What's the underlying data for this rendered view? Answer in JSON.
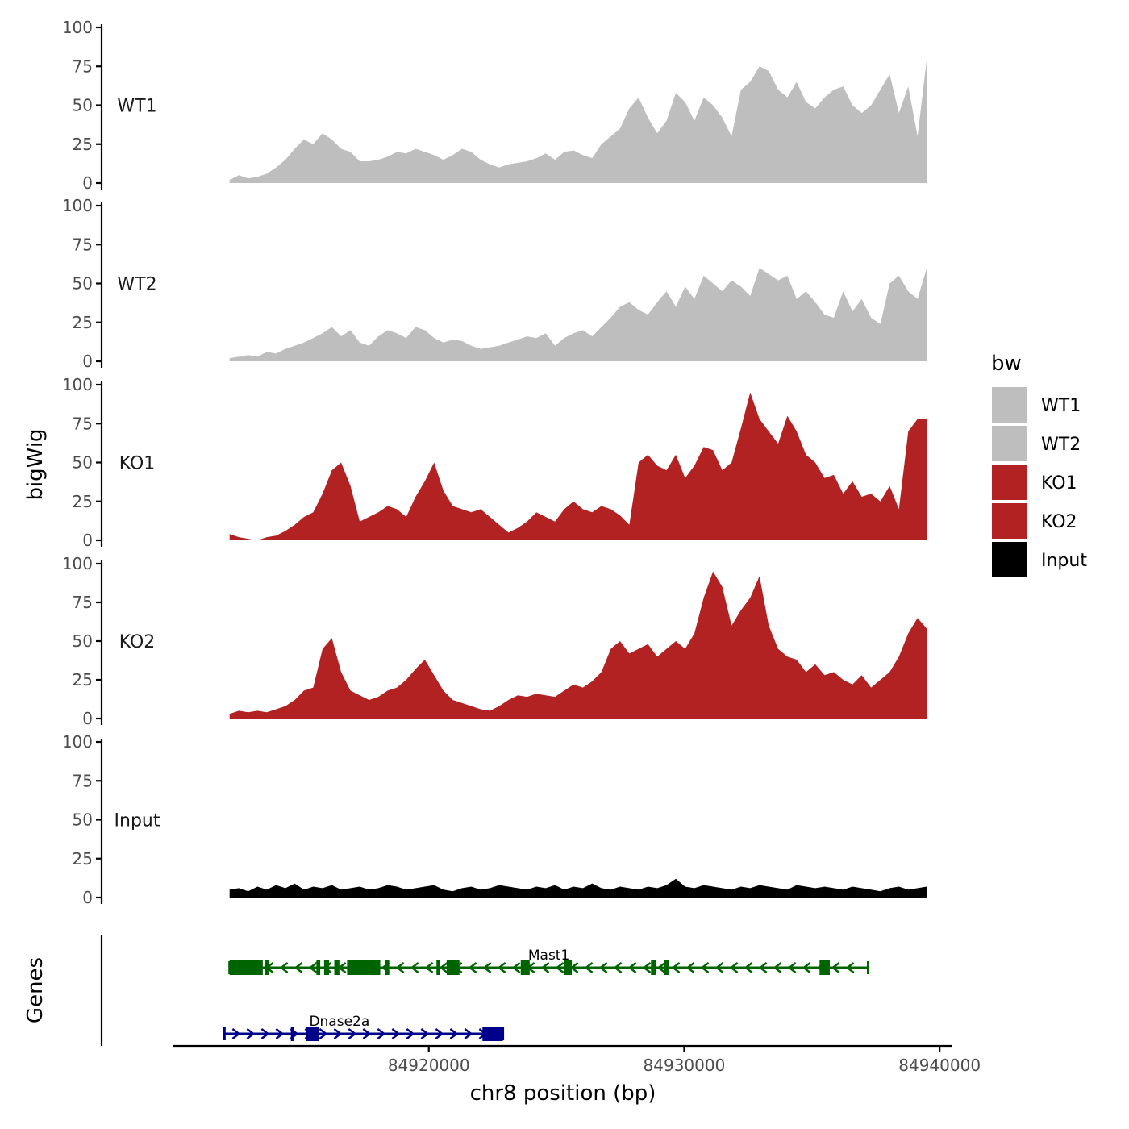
{
  "chart_data": {
    "type": "area",
    "title": "",
    "xlabel": "chr8 position (bp)",
    "ylabel": "bigWig",
    "genes_label": "Genes",
    "xlim": [
      84910000,
      84940500
    ],
    "x_ticks": [
      84920000,
      84930000,
      84940000
    ],
    "x_tick_labels": [
      "84920000",
      "84930000",
      "84940000"
    ],
    "x_range": [
      84912200,
      84939500
    ],
    "ylim": [
      0,
      100
    ],
    "y_ticks": [
      0,
      25,
      50,
      75,
      100
    ],
    "y_tick_labels": [
      "0",
      "25",
      "50",
      "75",
      "100"
    ],
    "legend": {
      "title": "bw",
      "position": "right",
      "entries": [
        {
          "label": "WT1",
          "color": "#bebebe"
        },
        {
          "label": "WT2",
          "color": "#bebebe"
        },
        {
          "label": "KO1",
          "color": "#b22222"
        },
        {
          "label": "KO2",
          "color": "#b22222"
        },
        {
          "label": "Input",
          "color": "#000000"
        }
      ]
    },
    "series": [
      {
        "name": "WT1",
        "color": "#bebebe",
        "values": [
          2,
          5,
          3,
          4,
          6,
          10,
          15,
          22,
          28,
          25,
          32,
          28,
          22,
          20,
          14,
          14,
          15,
          17,
          20,
          19,
          22,
          20,
          18,
          15,
          18,
          22,
          20,
          15,
          12,
          10,
          12,
          13,
          14,
          16,
          19,
          15,
          20,
          21,
          18,
          16,
          25,
          30,
          35,
          48,
          55,
          42,
          32,
          40,
          58,
          52,
          40,
          55,
          50,
          42,
          30,
          60,
          65,
          75,
          72,
          60,
          55,
          65,
          52,
          48,
          55,
          60,
          62,
          50,
          45,
          50,
          60,
          70,
          45,
          62,
          30,
          80
        ]
      },
      {
        "name": "WT2",
        "color": "#bebebe",
        "values": [
          2,
          3,
          4,
          3,
          6,
          5,
          8,
          10,
          12,
          15,
          18,
          22,
          16,
          20,
          12,
          10,
          16,
          20,
          18,
          15,
          22,
          20,
          15,
          12,
          14,
          13,
          10,
          8,
          9,
          10,
          12,
          14,
          16,
          15,
          18,
          10,
          15,
          18,
          20,
          16,
          22,
          28,
          35,
          38,
          33,
          30,
          38,
          45,
          35,
          48,
          40,
          55,
          50,
          45,
          52,
          48,
          42,
          60,
          56,
          52,
          55,
          40,
          45,
          38,
          30,
          28,
          45,
          32,
          40,
          28,
          24,
          50,
          55,
          45,
          40,
          60
        ]
      },
      {
        "name": "KO1",
        "color": "#b22222",
        "values": [
          4,
          2,
          1,
          0,
          2,
          3,
          6,
          10,
          15,
          18,
          30,
          45,
          50,
          35,
          12,
          15,
          18,
          22,
          20,
          15,
          28,
          38,
          50,
          32,
          22,
          20,
          18,
          20,
          15,
          10,
          5,
          8,
          12,
          18,
          15,
          12,
          20,
          25,
          20,
          18,
          22,
          20,
          16,
          10,
          50,
          55,
          48,
          45,
          55,
          40,
          48,
          60,
          58,
          45,
          50,
          72,
          95,
          78,
          70,
          62,
          80,
          70,
          55,
          50,
          40,
          42,
          30,
          38,
          28,
          30,
          25,
          35,
          20,
          70,
          78,
          78
        ]
      },
      {
        "name": "KO2",
        "color": "#b22222",
        "values": [
          3,
          5,
          4,
          5,
          4,
          6,
          8,
          12,
          18,
          20,
          45,
          52,
          30,
          18,
          15,
          12,
          14,
          18,
          20,
          25,
          32,
          38,
          28,
          18,
          12,
          10,
          8,
          6,
          5,
          8,
          12,
          15,
          14,
          16,
          15,
          14,
          18,
          22,
          20,
          24,
          30,
          45,
          50,
          42,
          45,
          48,
          40,
          45,
          50,
          45,
          55,
          78,
          95,
          85,
          60,
          70,
          78,
          92,
          60,
          45,
          40,
          38,
          30,
          35,
          28,
          30,
          25,
          22,
          28,
          20,
          25,
          30,
          40,
          55,
          65,
          58
        ]
      },
      {
        "name": "Input",
        "color": "#000000",
        "values": [
          5,
          6,
          4,
          7,
          5,
          8,
          6,
          9,
          5,
          7,
          6,
          8,
          5,
          6,
          7,
          5,
          6,
          8,
          7,
          5,
          6,
          7,
          8,
          5,
          4,
          6,
          7,
          5,
          6,
          8,
          7,
          6,
          5,
          7,
          6,
          8,
          5,
          7,
          6,
          9,
          6,
          5,
          7,
          6,
          5,
          7,
          6,
          8,
          12,
          7,
          6,
          8,
          7,
          6,
          5,
          7,
          6,
          8,
          7,
          6,
          5,
          8,
          7,
          6,
          7,
          6,
          5,
          7,
          6,
          5,
          4,
          6,
          7,
          5,
          6,
          7
        ]
      }
    ],
    "gene_tracks": [
      {
        "name": "Mast1",
        "strand": "-",
        "color": "#006400",
        "start": 84912200,
        "end": 84937200,
        "exons": [
          [
            84912200,
            84913500
          ],
          [
            84913600,
            84913750
          ],
          [
            84915600,
            84915750
          ],
          [
            84915900,
            84916100
          ],
          [
            84916300,
            84916500
          ],
          [
            84916800,
            84918100
          ],
          [
            84918300,
            84918450
          ],
          [
            84920300,
            84920450
          ],
          [
            84920700,
            84921200
          ],
          [
            84923600,
            84923950
          ],
          [
            84925300,
            84925600
          ],
          [
            84928700,
            84928900
          ],
          [
            84929200,
            84929400
          ],
          [
            84935300,
            84935700
          ]
        ]
      },
      {
        "name": "Dnase2a",
        "strand": "+",
        "color": "#00008b",
        "start": 84912000,
        "end": 84922900,
        "exons": [
          [
            84914600,
            84914700
          ],
          [
            84915200,
            84915700
          ],
          [
            84922100,
            84922900
          ]
        ]
      }
    ]
  }
}
